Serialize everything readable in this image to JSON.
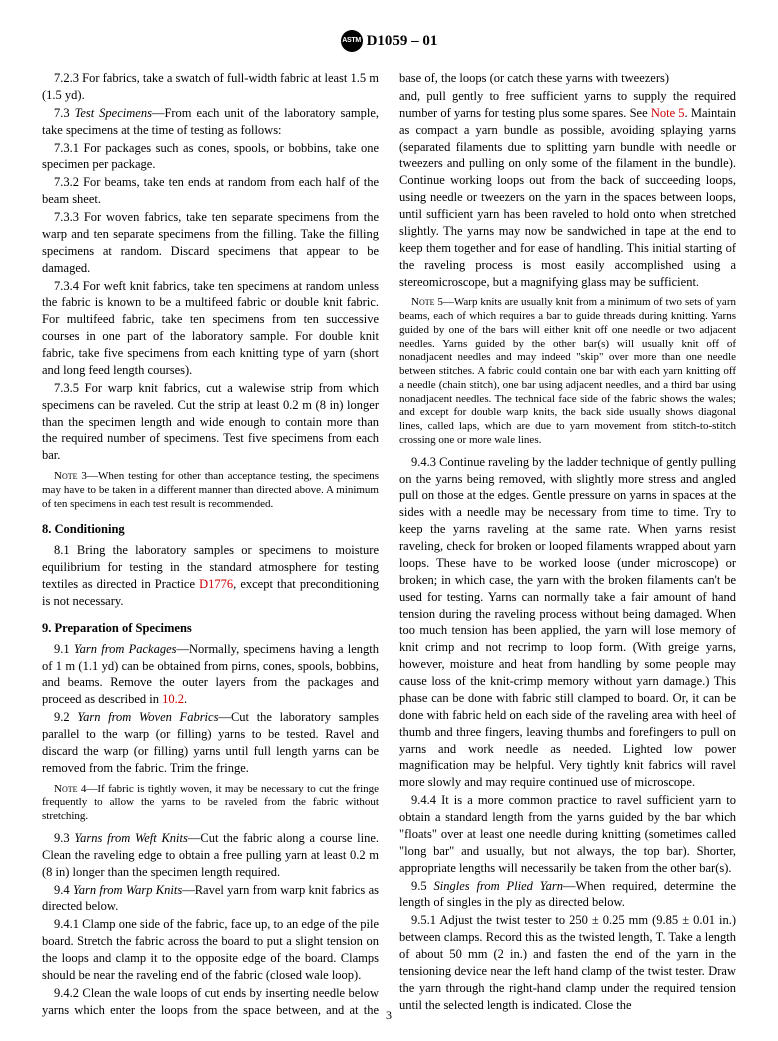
{
  "header": {
    "designation": "D1059 – 01"
  },
  "col": {
    "p7_2_3": "7.2.3 For fabrics, take a swatch of full-width fabric at least 1.5 m (1.5 yd).",
    "p7_3_lead": "7.3 ",
    "p7_3_title": "Test Specimens",
    "p7_3_rest": "—From each unit of the laboratory sample, take specimens at the time of testing as follows:",
    "p7_3_1": "7.3.1 For packages such as cones, spools, or bobbins, take one specimen per package.",
    "p7_3_2": "7.3.2 For beams, take ten ends at random from each half of the beam sheet.",
    "p7_3_3": "7.3.3 For woven fabrics, take ten separate specimens from the warp and ten separate specimens from the filling. Take the filling specimens at random. Discard specimens that appear to be damaged.",
    "p7_3_4": "7.3.4 For weft knit fabrics, take ten specimens at random unless the fabric is known to be a multifeed fabric or double knit fabric. For multifeed fabric, take ten specimens from ten successive courses in one part of the laboratory sample. For double knit fabric, take five specimens from each knitting type of yarn (short and long feed length courses).",
    "p7_3_5": "7.3.5 For warp knit fabrics, cut a walewise strip from which specimens can be raveled. Cut the strip at least 0.2 m (8 in) longer than the specimen length and wide enough to contain more than the required number of specimens. Test five specimens from each bar.",
    "note3_lead": "Note 3—",
    "note3": "When testing for other than acceptance testing, the specimens may have to be taken in a different manner than directed above. A minimum of ten specimens in each test result is recommended.",
    "s8": "8.  Conditioning",
    "p8_1_a": "8.1 Bring the laboratory samples or specimens to moisture equilibrium for testing in the standard atmosphere for testing textiles as directed in Practice ",
    "p8_1_link": "D1776",
    "p8_1_b": ", except that preconditioning is not necessary.",
    "s9": "9.  Preparation of Specimens",
    "p9_1_lead": "9.1 ",
    "p9_1_title": "Yarn from Packages",
    "p9_1_rest": "—Normally, specimens having a length of 1 m (1.1 yd) can be obtained from pirns, cones, spools, bobbins, and beams. Remove the outer layers from the packages and proceed as described in ",
    "p9_1_link": "10.2",
    "p9_1_end": ".",
    "p9_2_lead": "9.2 ",
    "p9_2_title": "Yarn from Woven Fabrics",
    "p9_2_rest": "—Cut the laboratory samples parallel to the warp (or filling) yarns to be tested. Ravel and discard the warp (or filling) yarns until full length yarns can be removed from the fabric. Trim the fringe.",
    "note4_lead": "Note 4—",
    "note4": "If fabric is tightly woven, it may be necessary to cut the fringe frequently to allow the yarns to be raveled from the fabric without stretching.",
    "p9_3_lead": "9.3 ",
    "p9_3_title": "Yarns from Weft Knits",
    "p9_3_rest": "—Cut the fabric along a course line. Clean the raveling edge to obtain a free pulling yarn at least 0.2 m (8 in) longer than the specimen length required.",
    "p9_4_lead": "9.4 ",
    "p9_4_title": "Yarn from Warp Knits",
    "p9_4_rest": "—Ravel yarn from warp knit fabrics as directed below.",
    "p9_4_1": "9.4.1 Clamp one side of the fabric, face up, to an edge of the pile board. Stretch the fabric across the board to put a slight tension on the loops and clamp it to the opposite edge of the board. Clamps should be near the raveling end of the fabric (closed wale loop).",
    "p9_4_2": "9.4.2 Clean the wale loops of cut ends by inserting needle below yarns which enter the loops from the space between, and at the base of, the loops (or catch these yarns with tweezers)",
    "p9_4_2b_a": "and, pull gently to free sufficient yarns to supply the required number of yarns for testing plus some spares. See ",
    "p9_4_2b_link": "Note 5",
    "p9_4_2b_b": ". Maintain as compact a yarn bundle as possible, avoiding splaying yarns (separated filaments due to splitting yarn bundle with needle or tweezers and pulling on only some of the filament in the bundle). Continue working loops out from the back of succeeding loops, using needle or tweezers on the yarn in the spaces between loops, until sufficient yarn has been raveled to hold onto when stretched slightly. The yarns may now be sandwiched in tape at the end to keep them together and for ease of handling. This initial starting of the raveling process is most easily accomplished using a stereomicroscope, but a magnifying glass may be sufficient.",
    "note5_lead": "Note 5—",
    "note5": "Warp knits are usually knit from a minimum of two sets of yarn beams, each of which requires a bar to guide threads during knitting. Yarns guided by one of the bars will either knit off one needle or two adjacent needles. Yarns guided by the other bar(s) will usually knit off of nonadjacent needles and may indeed \"skip\" over more than one needle between stitches. A fabric could contain one bar with each yarn knitting off a needle (chain stitch), one bar using adjacent needles, and a third bar using nonadjacent needles. The technical face side of the fabric shows the wales; and except for double warp knits, the back side usually shows diagonal lines, called laps, which are due to yarn movement from stitch-to-stitch crossing one or more wale lines.",
    "p9_4_3": "9.4.3 Continue raveling by the ladder technique of gently pulling on the yarns being removed, with slightly more stress and angled pull on those at the edges. Gentle pressure on yarns in spaces at the sides with a needle may be necessary from time to time. Try to keep the yarns raveling at the same rate. When yarns resist raveling, check for broken or looped filaments wrapped about yarn loops. These have to be worked loose (under microscope) or broken; in which case, the yarn with the broken filaments can't be used for testing. Yarns can normally take a fair amount of hand tension during the raveling process without being damaged. When too much tension has been applied, the yarn will lose memory of knit crimp and not recrimp to loop form. (With greige yarns, however, moisture and heat from handling by some people may cause loss of the knit-crimp memory without yarn damage.) This phase can be done with fabric still clamped to board. Or, it can be done with fabric held on each side of the raveling area with heel of thumb and three fingers, leaving thumbs and forefingers to pull on yarns and work needle as needed. Lighted low power magnification may be helpful. Very tightly knit fabrics will ravel more slowly and may require continued use of microscope.",
    "p9_4_4": "9.4.4 It is a more common practice to ravel sufficient yarn to obtain a standard length from the yarns guided by the bar which \"floats\" over at least one needle during knitting (sometimes called \"long bar\" and usually, but not always, the top bar). Shorter, appropriate lengths will necessarily be taken from the other bar(s).",
    "p9_5_lead": "9.5 ",
    "p9_5_title": "Singles from Plied Yarn",
    "p9_5_rest": "—When required, determine the length of singles in the ply as directed below.",
    "p9_5_1": "9.5.1 Adjust the twist tester to 250 ± 0.25 mm (9.85 ± 0.01 in.) between clamps. Record this as the twisted length, T. Take a length of about 50 mm (2 in.) and fasten the end of the yarn in the tensioning device near the left hand clamp of the twist tester. Draw the yarn through the right-hand clamp under the required tension until the selected length is indicated. Close the"
  },
  "pagenum": "3"
}
